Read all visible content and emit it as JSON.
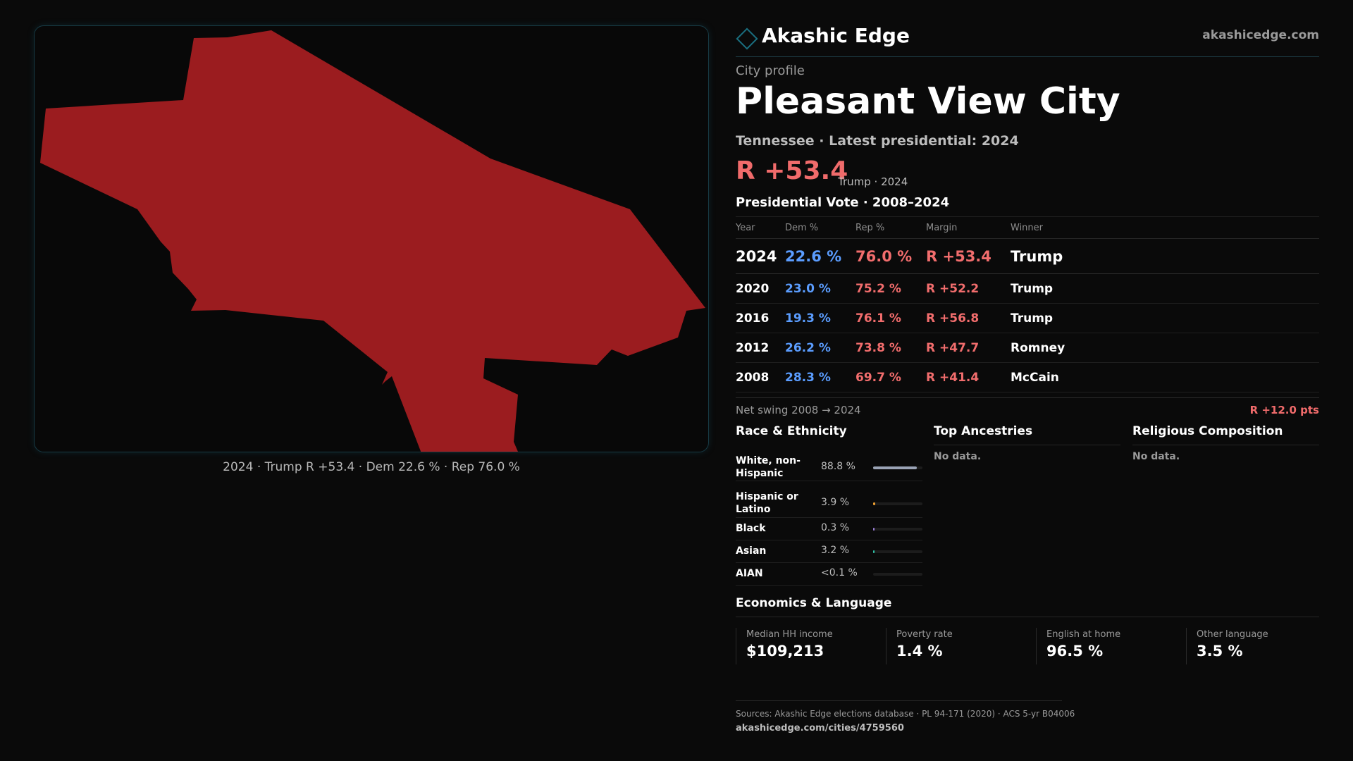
{
  "map": {
    "caption": "2024 · Trump R +53.4 · Dem 22.6 % · Rep 76.0 %",
    "fill_color": "#9b1c1f"
  },
  "brand": {
    "name": "Akashic Edge",
    "url": "akashicedge.com",
    "icon": "diamond-outline-icon"
  },
  "profile": {
    "subtitle": "City profile",
    "city": "Pleasant View City",
    "state_line": "Tennessee · Latest presidential: 2024",
    "margin": "R +53.4",
    "margin_sub": "Trump · 2024"
  },
  "vote": {
    "title": "Presidential Vote · 2008–2024",
    "headers": [
      "Year",
      "Dem %",
      "Rep %",
      "Margin",
      "Winner"
    ],
    "rows": [
      [
        "2024",
        "22.6 %",
        "76.0 %",
        "R +53.4",
        "Trump"
      ],
      [
        "2020",
        "23.0 %",
        "75.2 %",
        "R +52.2",
        "Trump"
      ],
      [
        "2016",
        "19.3 %",
        "76.1 %",
        "R +56.8",
        "Trump"
      ],
      [
        "2012",
        "26.2 %",
        "73.8 %",
        "R +47.7",
        "Romney"
      ],
      [
        "2008",
        "28.3 %",
        "69.7 %",
        "R +41.4",
        "McCain"
      ]
    ],
    "swing_label": "Net swing 2008 → 2024",
    "swing_value": "R +12.0 pts"
  },
  "race": {
    "title": "Race & Ethnicity",
    "items": [
      {
        "label": "White, non-Hispanic",
        "value": "88.8 %",
        "share": 0.888,
        "color": "#9aa3b5"
      },
      {
        "label": "Hispanic or Latino",
        "value": "3.9 %",
        "share": 0.039,
        "color": "#f0a030"
      },
      {
        "label": "Black",
        "value": "0.3 %",
        "share": 0.003,
        "color": "#9b7fd8"
      },
      {
        "label": "Asian",
        "value": "3.2 %",
        "share": 0.032,
        "color": "#2fc4a8"
      },
      {
        "label": "AIAN",
        "value": "<0.1 %",
        "share": 0.0,
        "color": "#d87f7f"
      }
    ]
  },
  "ancestries": {
    "title": "Top Ancestries",
    "empty": "No data."
  },
  "religion": {
    "title": "Religious Composition",
    "empty": "No data."
  },
  "economics": {
    "title": "Economics & Language",
    "stats": [
      {
        "label": "Median HH income",
        "value": "$109,213"
      },
      {
        "label": "Poverty rate",
        "value": "1.4 %"
      },
      {
        "label": "English at home",
        "value": "96.5 %"
      },
      {
        "label": "Other language",
        "value": "3.5 %"
      }
    ]
  },
  "footer": {
    "sources": "Sources: Akashic Edge elections database · PL 94-171 (2020) · ACS 5-yr B04006",
    "page_url": "akashicedge.com/cities/4759560"
  }
}
